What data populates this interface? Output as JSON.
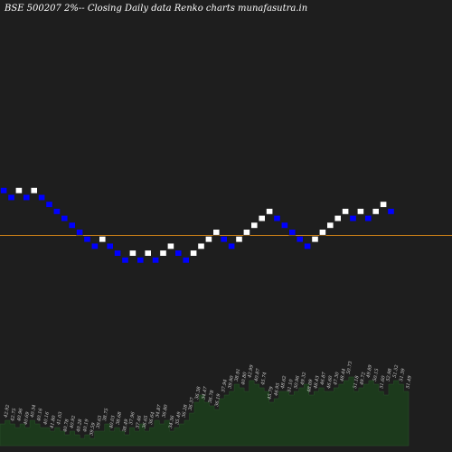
{
  "header": {
    "title": "BSE 500207 2%-- Closing Daily data Renko charts munafasutra.in"
  },
  "colors": {
    "background": "#1e1e1e",
    "up_brick": "#ffffff",
    "down_brick": "#0000ff",
    "reference_line": "#c07a18",
    "volume_area": "#1c3a1c"
  },
  "chart_data": {
    "type": "renko",
    "title": "BSE 500207 2%-- Closing Daily data Renko charts munafasutra.in",
    "brick_percent": 2,
    "directions": [
      "down",
      "down",
      "up",
      "down",
      "up",
      "down",
      "down",
      "down",
      "down",
      "down",
      "down",
      "down",
      "down",
      "up",
      "down",
      "down",
      "down",
      "up",
      "down",
      "up",
      "down",
      "up",
      "up",
      "down",
      "down",
      "up",
      "up",
      "up",
      "up",
      "down",
      "down",
      "up",
      "up",
      "up",
      "up",
      "up",
      "down",
      "down",
      "down",
      "down",
      "down",
      "up",
      "up",
      "up",
      "up",
      "up",
      "down",
      "up",
      "down",
      "up",
      "up",
      "down"
    ],
    "volume_labels": [
      "42.92",
      "42.75",
      "40.96",
      "40.69",
      "40.34",
      "40.16",
      "40.16",
      "41.80",
      "41.03",
      "40.78",
      "40.92",
      "40.28",
      "40.19",
      "39.59",
      "39.63",
      "38.75",
      "40.03",
      "38.68",
      "38.49",
      "37.96",
      "37.46",
      "36.65",
      "36.64",
      "34.87",
      "36.80",
      "34.36",
      "35.49",
      "36.28",
      "36.37",
      "36.38",
      "34.47",
      "36.78",
      "36.19",
      "37.94",
      "39.90",
      "38.91",
      "40.80",
      "42.99",
      "40.87",
      "45.74",
      "45.79",
      "46.95",
      "48.62",
      "51.10",
      "50.96",
      "49.32",
      "48.09",
      "48.43",
      "46.87",
      "46.60",
      "47.30",
      "48.44",
      "50.73",
      "51.18",
      "49.72",
      "49.89",
      "50.15",
      "51.60",
      "52.98",
      "51.52",
      "51.39",
      "51.49"
    ],
    "volume_values": [
      6,
      7,
      6,
      5,
      6,
      5,
      7,
      6,
      5,
      5,
      4,
      5,
      4,
      3,
      4,
      3,
      2,
      3,
      2,
      4,
      4,
      6,
      4,
      5,
      4,
      3,
      5,
      4,
      6,
      4,
      5,
      7,
      6,
      7,
      4,
      5,
      6,
      7,
      9,
      12,
      14,
      12,
      11,
      10,
      13,
      14,
      15,
      17,
      16,
      15,
      18,
      17,
      16,
      15,
      12,
      13,
      15,
      15,
      14,
      15,
      16,
      17,
      14,
      15,
      16,
      15,
      15,
      16,
      17,
      18,
      19,
      15,
      16,
      17,
      18,
      17,
      15,
      14,
      17,
      18,
      17,
      15
    ]
  }
}
